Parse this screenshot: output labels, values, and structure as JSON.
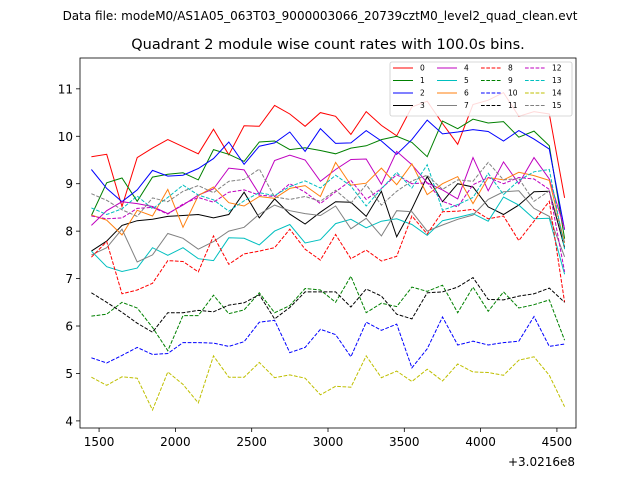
{
  "header": "Data file: modeM0/AS1A05_063T03_9000003066_20739cztM0_level2_quad_clean.evt",
  "chart_data": {
    "type": "line",
    "title": "Quadrant 2 module wise count rates with 100.0s bins.",
    "xlabel": "",
    "ylabel": "",
    "x_offset_label": "+3.0216e8",
    "xlim": [
      1375,
      4625
    ],
    "ylim": [
      3.85,
      11.65
    ],
    "xticks": [
      1500,
      2000,
      2500,
      3000,
      3500,
      4000,
      4500
    ],
    "yticks": [
      4,
      5,
      6,
      7,
      8,
      9,
      10,
      11
    ],
    "legend_position": "top-right",
    "x": [
      1450,
      1550,
      1650,
      1750,
      1850,
      1950,
      2050,
      2150,
      2250,
      2350,
      2450,
      2550,
      2650,
      2750,
      2850,
      2950,
      3050,
      3150,
      3250,
      3350,
      3450,
      3550,
      3650,
      3750,
      3850,
      3950,
      4050,
      4150,
      4250,
      4350,
      4450,
      4550
    ],
    "series": [
      {
        "name": "0",
        "color": "#ff0000",
        "dash": "solid",
        "values": [
          9.57,
          9.62,
          8.52,
          9.55,
          9.75,
          9.93,
          9.78,
          9.63,
          10.15,
          9.61,
          10.22,
          10.21,
          10.65,
          10.47,
          10.21,
          10.5,
          10.42,
          10.04,
          10.52,
          10.23,
          10.01,
          10.62,
          10.74,
          10.27,
          9.83,
          10.67,
          10.76,
          10.92,
          10.42,
          10.52,
          10.47,
          8.7
        ]
      },
      {
        "name": "1",
        "color": "#008000",
        "dash": "solid",
        "values": [
          8.33,
          9.02,
          9.12,
          8.63,
          9.14,
          9.2,
          9.23,
          9.08,
          9.72,
          9.62,
          9.47,
          9.88,
          9.9,
          9.72,
          9.76,
          9.7,
          9.63,
          9.75,
          9.8,
          9.93,
          10.0,
          9.87,
          9.57,
          10.32,
          10.16,
          10.36,
          10.28,
          10.31,
          9.98,
          10.11,
          9.8,
          7.84
        ]
      },
      {
        "name": "2",
        "color": "#0000ff",
        "dash": "solid",
        "values": [
          9.3,
          8.9,
          8.62,
          8.87,
          9.28,
          9.16,
          9.18,
          9.32,
          9.53,
          9.88,
          9.41,
          9.79,
          9.86,
          10.09,
          9.68,
          10.16,
          9.85,
          9.86,
          10.12,
          9.9,
          9.62,
          9.93,
          10.34,
          10.05,
          10.09,
          10.14,
          10.1,
          9.9,
          10.12,
          9.94,
          9.73,
          8.03
        ]
      },
      {
        "name": "3",
        "color": "#000000",
        "dash": "solid",
        "values": [
          7.58,
          7.79,
          8.12,
          8.22,
          8.25,
          8.31,
          8.33,
          8.35,
          8.28,
          8.35,
          8.82,
          8.28,
          8.68,
          8.36,
          8.15,
          8.4,
          8.62,
          8.61,
          8.31,
          8.84,
          7.88,
          8.47,
          9.15,
          8.62,
          9.0,
          8.93,
          8.51,
          8.35,
          8.55,
          8.83,
          8.84,
          7.65
        ]
      },
      {
        "name": "4",
        "color": "#bf00bf",
        "dash": "solid",
        "values": [
          8.12,
          8.43,
          8.62,
          8.58,
          8.52,
          8.37,
          8.55,
          8.76,
          8.89,
          9.33,
          9.29,
          8.78,
          9.49,
          9.6,
          9.5,
          9.05,
          9.3,
          9.51,
          9.52,
          8.99,
          9.68,
          9.4,
          9.02,
          8.87,
          8.68,
          9.55,
          8.85,
          9.46,
          9.0,
          9.55,
          9.1,
          8.05
        ]
      },
      {
        "name": "5",
        "color": "#00bfbf",
        "dash": "solid",
        "values": [
          7.58,
          7.25,
          7.15,
          7.22,
          7.65,
          7.49,
          7.65,
          7.42,
          7.38,
          7.86,
          7.85,
          7.71,
          8.0,
          8.14,
          7.75,
          7.82,
          8.16,
          8.25,
          8.07,
          8.21,
          8.26,
          8.14,
          7.91,
          8.22,
          8.29,
          8.37,
          8.21,
          8.72,
          8.55,
          8.26,
          8.27,
          7.09
        ]
      },
      {
        "name": "6",
        "color": "#ff7f0e",
        "dash": "solid",
        "values": [
          8.34,
          8.23,
          7.92,
          8.44,
          8.32,
          8.88,
          8.08,
          8.75,
          8.93,
          8.6,
          8.53,
          8.73,
          8.69,
          8.9,
          8.96,
          8.73,
          9.45,
          8.97,
          9.01,
          9.33,
          8.98,
          9.42,
          8.77,
          9.0,
          9.15,
          8.58,
          9.13,
          9.08,
          9.24,
          9.17,
          9.07,
          7.75
        ]
      },
      {
        "name": "7",
        "color": "#808080",
        "dash": "solid",
        "values": [
          7.5,
          7.65,
          8.04,
          7.35,
          7.5,
          7.95,
          7.85,
          7.62,
          7.78,
          8.0,
          8.08,
          8.36,
          8.55,
          8.43,
          8.37,
          8.33,
          8.53,
          8.05,
          8.27,
          7.9,
          8.43,
          8.41,
          8.0,
          8.13,
          8.25,
          8.34,
          8.67,
          8.83,
          8.85,
          8.48,
          8.31,
          7.46
        ]
      },
      {
        "name": "8",
        "color": "#ff0000",
        "dash": "dashed",
        "values": [
          7.45,
          7.78,
          6.68,
          6.76,
          6.9,
          7.38,
          7.36,
          7.14,
          7.9,
          7.3,
          7.52,
          7.58,
          7.65,
          8.04,
          7.62,
          7.39,
          7.93,
          7.42,
          7.6,
          7.37,
          7.47,
          8.32,
          7.94,
          8.41,
          8.42,
          8.46,
          8.26,
          8.32,
          7.8,
          8.21,
          8.63,
          6.5
        ]
      },
      {
        "name": "9",
        "color": "#008000",
        "dash": "dashed",
        "values": [
          6.21,
          6.25,
          6.5,
          6.38,
          5.97,
          5.48,
          6.22,
          6.22,
          6.65,
          6.26,
          6.34,
          6.7,
          6.28,
          6.43,
          6.79,
          6.76,
          6.5,
          7.05,
          6.28,
          6.48,
          6.41,
          6.82,
          6.73,
          6.86,
          6.28,
          6.82,
          6.31,
          6.72,
          6.38,
          6.45,
          6.55,
          5.7
        ]
      },
      {
        "name": "10",
        "color": "#0000ff",
        "dash": "dashed",
        "values": [
          5.33,
          5.22,
          5.38,
          5.55,
          5.4,
          5.42,
          5.65,
          5.65,
          5.64,
          5.57,
          5.67,
          6.08,
          6.12,
          5.44,
          5.55,
          5.93,
          5.82,
          5.35,
          6.08,
          5.91,
          6.04,
          5.12,
          5.52,
          6.19,
          5.6,
          5.68,
          5.6,
          5.65,
          5.68,
          6.2,
          5.57,
          5.62
        ]
      },
      {
        "name": "11",
        "color": "#000000",
        "dash": "dashed",
        "values": [
          6.7,
          6.5,
          6.29,
          6.06,
          5.87,
          6.28,
          6.28,
          6.33,
          6.3,
          6.44,
          6.49,
          6.66,
          6.15,
          6.39,
          6.72,
          6.72,
          6.72,
          6.4,
          6.78,
          6.63,
          6.25,
          6.15,
          6.7,
          6.72,
          6.82,
          7.02,
          6.56,
          6.55,
          6.63,
          6.68,
          6.8,
          6.5
        ]
      },
      {
        "name": "12",
        "color": "#bf00bf",
        "dash": "dashed",
        "values": [
          8.32,
          8.26,
          8.28,
          8.48,
          8.5,
          8.36,
          8.57,
          8.71,
          8.61,
          8.82,
          8.87,
          8.76,
          8.73,
          9.0,
          8.82,
          8.58,
          8.83,
          9.07,
          8.67,
          8.9,
          9.19,
          9.0,
          9.02,
          8.63,
          8.51,
          8.98,
          9.13,
          9.0,
          9.13,
          9.1,
          8.88,
          7.14
        ]
      },
      {
        "name": "13",
        "color": "#00bfbf",
        "dash": "dashed",
        "values": [
          8.49,
          8.35,
          8.47,
          8.74,
          8.47,
          8.71,
          8.97,
          8.76,
          8.66,
          8.42,
          8.64,
          8.81,
          8.75,
          8.94,
          9.06,
          8.91,
          9.18,
          8.95,
          8.53,
          8.89,
          9.24,
          8.91,
          9.4,
          8.44,
          8.56,
          8.71,
          9.22,
          8.77,
          9.07,
          9.25,
          9.3,
          7.62
        ]
      },
      {
        "name": "14",
        "color": "#bfbf00",
        "dash": "dashed",
        "values": [
          4.92,
          4.75,
          4.93,
          4.9,
          4.23,
          5.03,
          4.77,
          4.38,
          5.37,
          4.92,
          4.92,
          5.23,
          4.91,
          4.97,
          4.9,
          4.55,
          4.73,
          4.71,
          5.37,
          4.91,
          5.05,
          4.83,
          5.09,
          4.84,
          5.2,
          5.03,
          5.02,
          4.96,
          5.28,
          5.35,
          4.96,
          4.3
        ]
      },
      {
        "name": "15",
        "color": "#808080",
        "dash": "dashed",
        "values": [
          8.79,
          8.65,
          8.45,
          8.31,
          8.7,
          8.62,
          8.84,
          8.96,
          8.81,
          9.05,
          9.09,
          9.31,
          8.72,
          8.67,
          8.73,
          8.63,
          8.86,
          8.59,
          8.98,
          8.55,
          8.84,
          9.06,
          9.18,
          8.88,
          9.08,
          9.05,
          9.45,
          9.08,
          9.11,
          8.63,
          8.85,
          7.76
        ]
      }
    ]
  }
}
